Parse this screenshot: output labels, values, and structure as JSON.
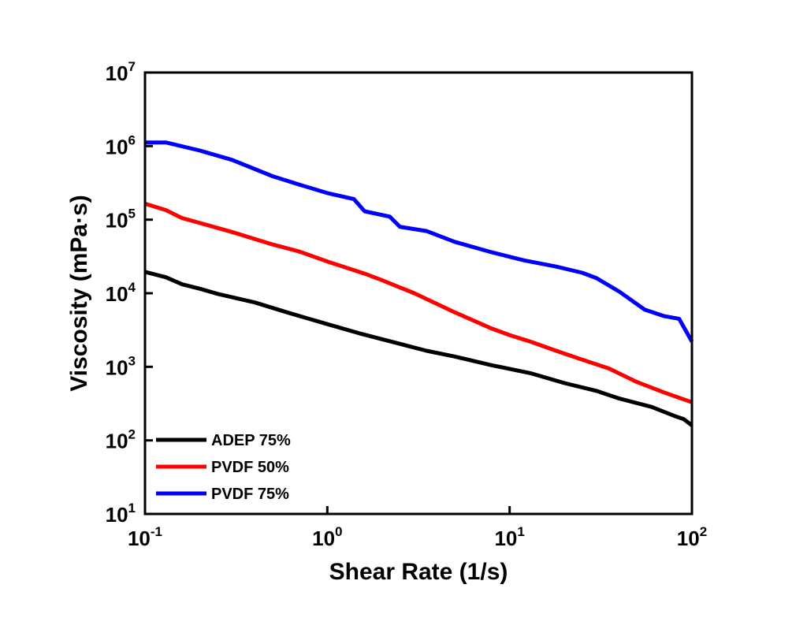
{
  "chart_data": {
    "type": "line",
    "title": "",
    "xlabel": "Shear Rate (1/s)",
    "ylabel": "Viscosity (mPa·s)",
    "xscale": "log",
    "yscale": "log",
    "xlim": [
      0.1,
      100
    ],
    "ylim": [
      10,
      10000000
    ],
    "x_tick_labels": [
      {
        "base": "10",
        "exp": "-1"
      },
      {
        "base": "10",
        "exp": "0"
      },
      {
        "base": "10",
        "exp": "1"
      },
      {
        "base": "10",
        "exp": "2"
      }
    ],
    "y_tick_labels": [
      {
        "base": "10",
        "exp": "1"
      },
      {
        "base": "10",
        "exp": "2"
      },
      {
        "base": "10",
        "exp": "3"
      },
      {
        "base": "10",
        "exp": "4"
      },
      {
        "base": "10",
        "exp": "5"
      },
      {
        "base": "10",
        "exp": "6"
      },
      {
        "base": "10",
        "exp": "7"
      }
    ],
    "grid": false,
    "legend_position": "bottom-left",
    "series": [
      {
        "name": "ADEP 75%",
        "color": "#000000",
        "points": [
          [
            0.1,
            19500
          ],
          [
            0.13,
            16500
          ],
          [
            0.16,
            13200
          ],
          [
            0.2,
            11500
          ],
          [
            0.25,
            9800
          ],
          [
            0.4,
            7500
          ],
          [
            0.6,
            5500
          ],
          [
            1.0,
            3800
          ],
          [
            1.5,
            2850
          ],
          [
            2.5,
            2050
          ],
          [
            3.5,
            1650
          ],
          [
            5.0,
            1380
          ],
          [
            8.0,
            1050
          ],
          [
            13,
            820
          ],
          [
            20,
            600
          ],
          [
            30,
            470
          ],
          [
            40,
            370
          ],
          [
            60,
            285
          ],
          [
            80,
            215
          ],
          [
            90,
            195
          ],
          [
            100,
            160
          ]
        ]
      },
      {
        "name": "PVDF 50%",
        "color": "#ff0000",
        "points": [
          [
            0.1,
            165000
          ],
          [
            0.13,
            135000
          ],
          [
            0.16,
            105000
          ],
          [
            0.2,
            90000
          ],
          [
            0.3,
            68000
          ],
          [
            0.5,
            46000
          ],
          [
            0.7,
            37000
          ],
          [
            1.0,
            27000
          ],
          [
            1.6,
            18500
          ],
          [
            2.0,
            15000
          ],
          [
            3.0,
            10000
          ],
          [
            5.0,
            5500
          ],
          [
            8.0,
            3300
          ],
          [
            10,
            2700
          ],
          [
            13,
            2200
          ],
          [
            18,
            1650
          ],
          [
            25,
            1250
          ],
          [
            35,
            950
          ],
          [
            50,
            620
          ],
          [
            70,
            450
          ],
          [
            100,
            330
          ]
        ]
      },
      {
        "name": "PVDF 75%",
        "color": "#0000ff",
        "points": [
          [
            0.1,
            1120000
          ],
          [
            0.13,
            1120000
          ],
          [
            0.2,
            870000
          ],
          [
            0.3,
            650000
          ],
          [
            0.5,
            390000
          ],
          [
            0.7,
            300000
          ],
          [
            1.0,
            230000
          ],
          [
            1.4,
            190000
          ],
          [
            1.6,
            130000
          ],
          [
            2.2,
            110000
          ],
          [
            2.5,
            80000
          ],
          [
            3.5,
            70000
          ],
          [
            5.0,
            50000
          ],
          [
            8.0,
            36000
          ],
          [
            12,
            28000
          ],
          [
            18,
            23000
          ],
          [
            25,
            19000
          ],
          [
            30,
            16000
          ],
          [
            40,
            10500
          ],
          [
            55,
            6000
          ],
          [
            70,
            4900
          ],
          [
            85,
            4500
          ],
          [
            100,
            2200
          ]
        ]
      }
    ]
  }
}
